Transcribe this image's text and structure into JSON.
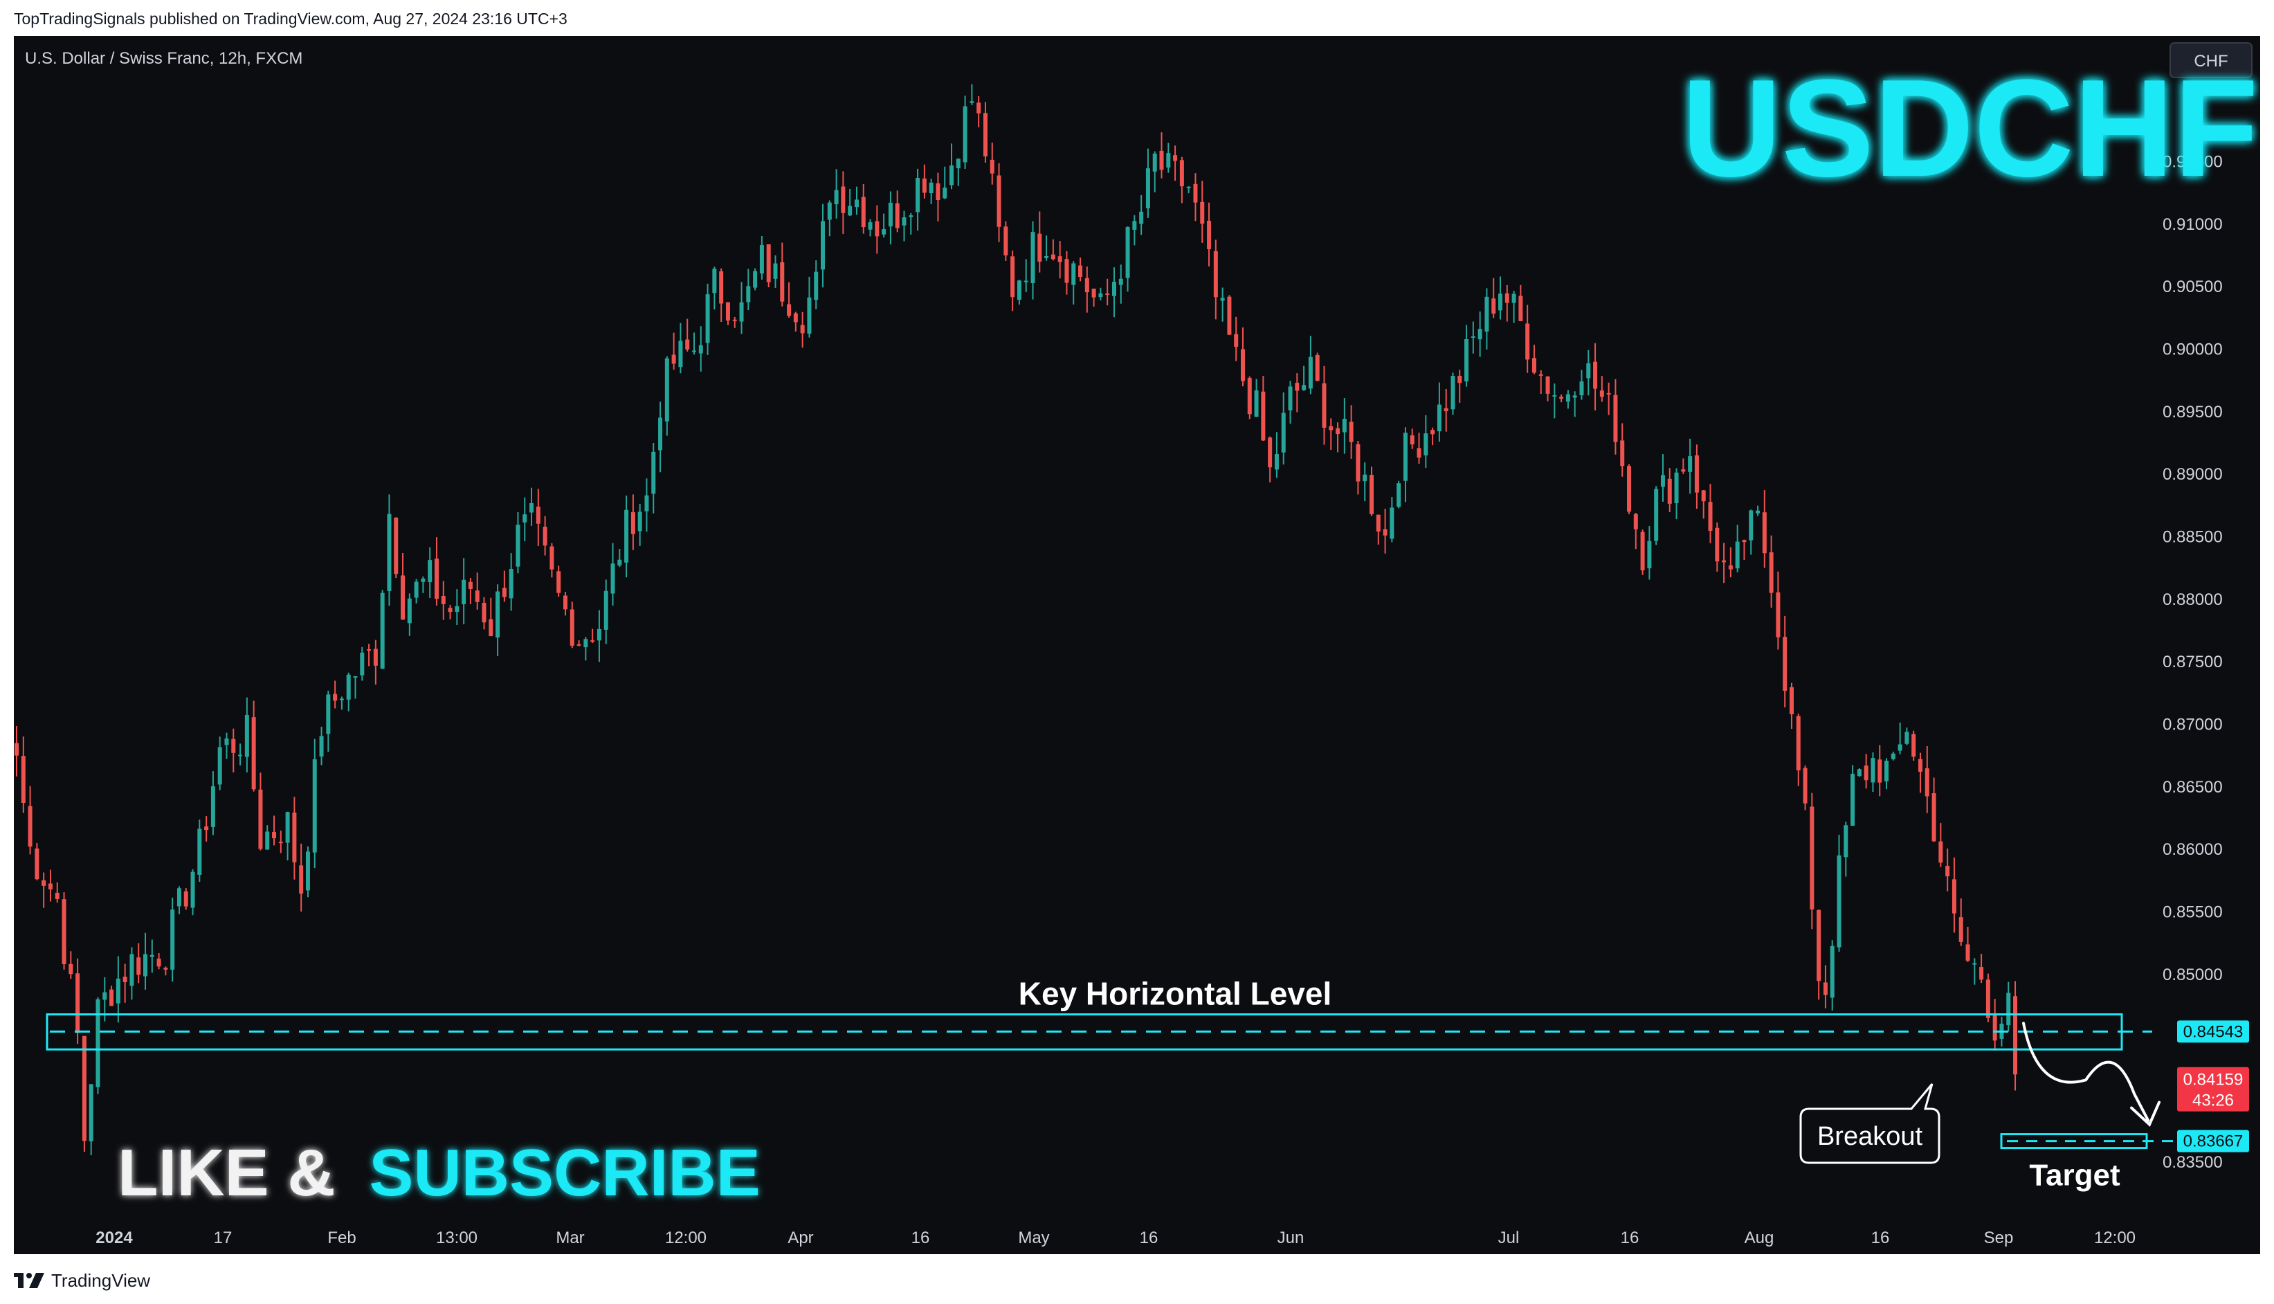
{
  "header": {
    "published_text": "TopTradingSignals published on TradingView.com, Aug 27, 2024 23:16 UTC+3"
  },
  "footer": {
    "brand": "TradingView"
  },
  "colors": {
    "background": "#0c0d10",
    "up": "#26a69a",
    "down": "#ef5350",
    "accent": "#1de9f6",
    "text": "#d1d4dc"
  },
  "chart_data": {
    "type": "candlestick",
    "symbol_label": "U.S. Dollar / Swiss Franc, 12h, FXCM",
    "currency_badge": "CHF",
    "title": "USDCHF",
    "y_range": [
      0.8315,
      0.9225
    ],
    "y_ticks": [
      "0.91500",
      "0.91000",
      "0.90500",
      "0.90000",
      "0.89500",
      "0.89000",
      "0.88500",
      "0.88000",
      "0.87500",
      "0.87000",
      "0.86500",
      "0.86000",
      "0.85500",
      "0.85000",
      "0.83500"
    ],
    "x_ticks": [
      {
        "label": "2024",
        "bold": true
      },
      {
        "label": "17"
      },
      {
        "label": "Feb"
      },
      {
        "label": "13:00"
      },
      {
        "label": "Mar"
      },
      {
        "label": "12:00"
      },
      {
        "label": "Apr"
      },
      {
        "label": "16"
      },
      {
        "label": "May"
      },
      {
        "label": "16"
      },
      {
        "label": "Jun"
      },
      {
        "label": "Jul"
      },
      {
        "label": "16"
      },
      {
        "label": "Aug"
      },
      {
        "label": "16"
      },
      {
        "label": "Sep"
      },
      {
        "label": "12:00"
      }
    ],
    "price_path": [
      [
        0,
        0.8675
      ],
      [
        2,
        0.86
      ],
      [
        6,
        0.856
      ],
      [
        9,
        0.845
      ],
      [
        10,
        0.837
      ],
      [
        12,
        0.847
      ],
      [
        14,
        0.849
      ],
      [
        17,
        0.851
      ],
      [
        22,
        0.852
      ],
      [
        27,
        0.86
      ],
      [
        30,
        0.868
      ],
      [
        34,
        0.869
      ],
      [
        36,
        0.861
      ],
      [
        40,
        0.862
      ],
      [
        42,
        0.857
      ],
      [
        45,
        0.87
      ],
      [
        48,
        0.873
      ],
      [
        53,
        0.876
      ],
      [
        55,
        0.887
      ],
      [
        57,
        0.88
      ],
      [
        61,
        0.8815
      ],
      [
        64,
        0.879
      ],
      [
        67,
        0.881
      ],
      [
        70,
        0.878
      ],
      [
        74,
        0.885
      ],
      [
        76,
        0.886
      ],
      [
        80,
        0.88
      ],
      [
        83,
        0.877
      ],
      [
        86,
        0.878
      ],
      [
        89,
        0.884
      ],
      [
        91,
        0.887
      ],
      [
        93,
        0.888
      ],
      [
        95,
        0.896
      ],
      [
        97,
        0.899
      ],
      [
        100,
        0.9
      ],
      [
        103,
        0.905
      ],
      [
        107,
        0.903
      ],
      [
        110,
        0.907
      ],
      [
        113,
        0.905
      ],
      [
        116,
        0.903
      ],
      [
        118,
        0.905
      ],
      [
        120,
        0.913
      ],
      [
        124,
        0.912
      ],
      [
        127,
        0.91
      ],
      [
        130,
        0.911
      ],
      [
        134,
        0.914
      ],
      [
        137,
        0.913
      ],
      [
        139,
        0.917
      ],
      [
        141,
        0.92
      ],
      [
        143,
        0.916
      ],
      [
        145,
        0.909
      ],
      [
        147,
        0.905
      ],
      [
        150,
        0.908
      ],
      [
        152,
        0.909
      ],
      [
        155,
        0.907
      ],
      [
        157,
        0.906
      ],
      [
        160,
        0.903
      ],
      [
        163,
        0.907
      ],
      [
        166,
        0.911
      ],
      [
        168,
        0.915
      ],
      [
        170,
        0.914
      ],
      [
        173,
        0.913
      ],
      [
        175,
        0.909
      ],
      [
        177,
        0.904
      ],
      [
        180,
        0.899
      ],
      [
        183,
        0.895
      ],
      [
        185,
        0.89
      ],
      [
        188,
        0.896
      ],
      [
        191,
        0.898
      ],
      [
        194,
        0.894
      ],
      [
        197,
        0.892
      ],
      [
        200,
        0.888
      ],
      [
        202,
        0.885
      ],
      [
        204,
        0.891
      ],
      [
        207,
        0.893
      ],
      [
        210,
        0.895
      ],
      [
        213,
        0.898
      ],
      [
        216,
        0.902
      ],
      [
        219,
        0.905
      ],
      [
        222,
        0.902
      ],
      [
        225,
        0.898
      ],
      [
        228,
        0.896
      ],
      [
        231,
        0.899
      ],
      [
        234,
        0.896
      ],
      [
        236,
        0.894
      ],
      [
        238,
        0.888
      ],
      [
        240,
        0.884
      ],
      [
        242,
        0.888
      ],
      [
        245,
        0.89
      ],
      [
        247,
        0.892
      ],
      [
        249,
        0.887
      ],
      [
        251,
        0.884
      ],
      [
        253,
        0.881
      ],
      [
        255,
        0.885
      ],
      [
        257,
        0.886
      ],
      [
        259,
        0.882
      ],
      [
        262,
        0.87
      ],
      [
        264,
        0.862
      ],
      [
        266,
        0.85
      ],
      [
        267,
        0.849
      ],
      [
        269,
        0.858
      ],
      [
        271,
        0.865
      ],
      [
        274,
        0.867
      ],
      [
        277,
        0.866
      ],
      [
        279,
        0.87
      ],
      [
        281,
        0.866
      ],
      [
        283,
        0.862
      ],
      [
        286,
        0.854
      ],
      [
        288,
        0.851
      ],
      [
        290,
        0.85
      ],
      [
        292,
        0.846
      ],
      [
        294,
        0.847
      ],
      [
        295,
        0.842
      ]
    ],
    "key_level": {
      "label": "Key Horizontal Level",
      "value": 0.84543,
      "value_label": "0.84543",
      "band": [
        0.844,
        0.8468
      ]
    },
    "last_price": {
      "value": 0.84159,
      "value_label": "0.84159",
      "countdown": "43:26"
    },
    "target": {
      "label": "Target",
      "value": 0.83667,
      "value_label": "0.83667"
    },
    "annotations": {
      "breakout_label": "Breakout"
    }
  },
  "overlay": {
    "like": "LIKE &",
    "subscribe": "SUBSCRIBE"
  }
}
